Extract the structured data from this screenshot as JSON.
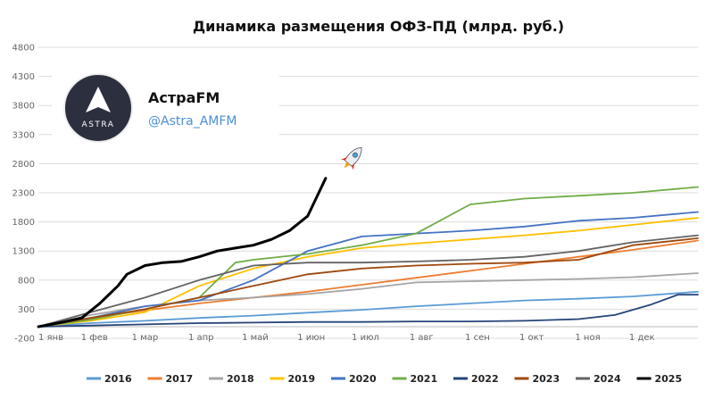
{
  "chart_data": {
    "type": "line",
    "title": "Динамика размещения ОФЗ-ПД (млрд. руб.)",
    "xlabel": "",
    "ylabel": "",
    "ylim": [
      -200,
      4800
    ],
    "yticks": [
      4800,
      4300,
      3800,
      3300,
      2800,
      2300,
      1800,
      1300,
      800,
      300,
      -200
    ],
    "xticks": [
      "1 янв",
      "1 фев",
      "1 мар",
      "1 апр",
      "1 май",
      "1 июн",
      "1 июл",
      "1 авг",
      "1 сен",
      "1 окт",
      "1 ноя",
      "1 дек"
    ],
    "xlim": [
      1,
      366
    ],
    "grid": true,
    "legend_position": "bottom",
    "series": [
      {
        "name": "2016",
        "color": "#5B9BD5",
        "x": [
          1,
          30,
          60,
          90,
          120,
          150,
          180,
          210,
          240,
          270,
          300,
          330,
          366
        ],
        "values": [
          0,
          60,
          100,
          150,
          190,
          240,
          290,
          350,
          400,
          450,
          480,
          520,
          600
        ]
      },
      {
        "name": "2017",
        "color": "#ED7D31",
        "x": [
          1,
          30,
          60,
          90,
          120,
          150,
          180,
          210,
          240,
          270,
          300,
          330,
          366
        ],
        "values": [
          0,
          150,
          280,
          400,
          500,
          600,
          720,
          840,
          960,
          1080,
          1200,
          1320,
          1480
        ]
      },
      {
        "name": "2018",
        "color": "#A5A5A5",
        "x": [
          1,
          30,
          60,
          90,
          120,
          150,
          180,
          210,
          240,
          270,
          300,
          330,
          366
        ],
        "values": [
          0,
          200,
          350,
          450,
          500,
          560,
          650,
          760,
          780,
          800,
          820,
          850,
          920
        ]
      },
      {
        "name": "2019",
        "color": "#FFC000",
        "x": [
          1,
          30,
          60,
          90,
          120,
          150,
          180,
          210,
          240,
          270,
          300,
          330,
          366
        ],
        "values": [
          0,
          100,
          250,
          700,
          1000,
          1200,
          1350,
          1430,
          1500,
          1570,
          1650,
          1750,
          1870
        ]
      },
      {
        "name": "2020",
        "color": "#4472C4",
        "x": [
          1,
          30,
          60,
          90,
          120,
          150,
          180,
          210,
          240,
          270,
          300,
          330,
          366
        ],
        "values": [
          0,
          150,
          350,
          450,
          800,
          1300,
          1550,
          1600,
          1650,
          1720,
          1820,
          1870,
          1970
        ]
      },
      {
        "name": "2021",
        "color": "#70AD47",
        "x": [
          1,
          30,
          60,
          90,
          110,
          120,
          150,
          180,
          210,
          240,
          270,
          300,
          330,
          366
        ],
        "values": [
          0,
          120,
          300,
          500,
          1100,
          1150,
          1250,
          1400,
          1600,
          2100,
          2200,
          2250,
          2300,
          2400
        ]
      },
      {
        "name": "2022",
        "color": "#264478",
        "x": [
          1,
          30,
          60,
          90,
          120,
          150,
          180,
          210,
          240,
          270,
          300,
          320,
          340,
          355,
          366
        ],
        "values": [
          0,
          20,
          40,
          60,
          70,
          80,
          80,
          90,
          90,
          100,
          130,
          200,
          380,
          550,
          550
        ]
      },
      {
        "name": "2023",
        "color": "#9E480E",
        "x": [
          1,
          30,
          60,
          90,
          120,
          150,
          180,
          210,
          240,
          270,
          300,
          330,
          366
        ],
        "values": [
          0,
          150,
          300,
          500,
          700,
          900,
          1000,
          1050,
          1080,
          1100,
          1150,
          1400,
          1520
        ]
      },
      {
        "name": "2024",
        "color": "#636363",
        "x": [
          1,
          30,
          60,
          90,
          120,
          150,
          180,
          210,
          240,
          270,
          300,
          330,
          366
        ],
        "values": [
          0,
          250,
          500,
          800,
          1050,
          1100,
          1100,
          1120,
          1150,
          1200,
          1300,
          1450,
          1570
        ]
      },
      {
        "name": "2025",
        "color": "#000000",
        "x": [
          1,
          15,
          25,
          35,
          45,
          50,
          60,
          70,
          80,
          90,
          100,
          110,
          120,
          130,
          140,
          150,
          160
        ],
        "values": [
          0,
          80,
          150,
          400,
          700,
          900,
          1050,
          1100,
          1120,
          1200,
          1300,
          1350,
          1400,
          1500,
          1650,
          1900,
          2550
        ]
      }
    ]
  },
  "brand": {
    "name": "АстраFM",
    "handle": "@Astra_AMFM",
    "logo_text": "ASTRA",
    "icon": "rocket-icon"
  }
}
